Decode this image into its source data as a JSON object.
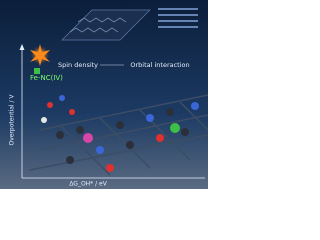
{
  "labels": {
    "catalyst": "Fe-NC(IV)",
    "spin": "Spin density",
    "orbital": "Orbital interaction",
    "y_axis": "Overpotential / V",
    "x_axis": "ΔG_OH* / eV"
  }
}
